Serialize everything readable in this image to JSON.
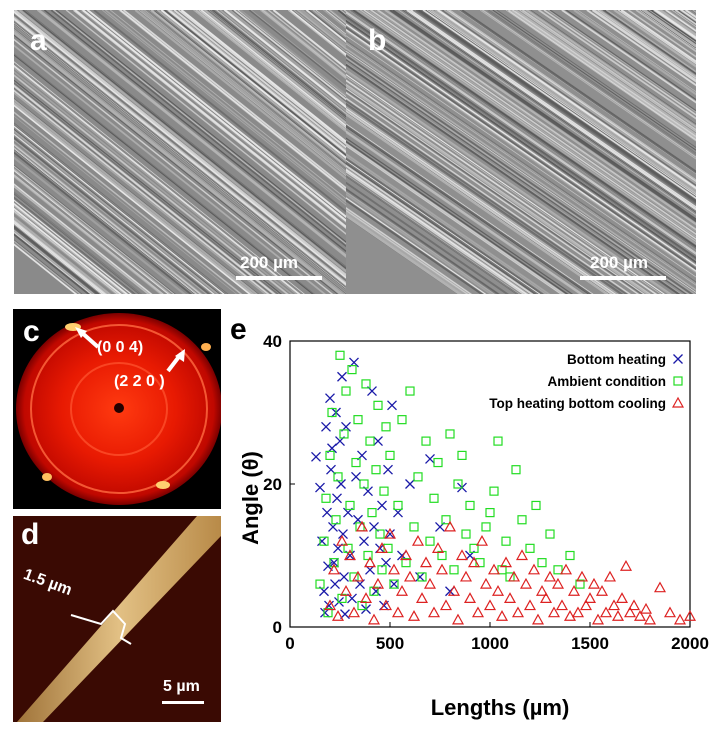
{
  "panels": {
    "a": {
      "label": "a",
      "scale_bar": "200 µm"
    },
    "b": {
      "label": "b",
      "scale_bar": "200 µm"
    },
    "c": {
      "label": "c",
      "annotations": [
        "(0 0 4)",
        "(2 2 0 )"
      ]
    },
    "d": {
      "label": "d",
      "width_annotation": "1.5 µm",
      "scale_bar": "5 µm"
    },
    "e": {
      "label": "e"
    }
  },
  "chart_data": {
    "type": "scatter",
    "xlabel": "Lengths (µm)",
    "ylabel": "Angle (θ)",
    "xlim": [
      0,
      2000
    ],
    "ylim": [
      0,
      40
    ],
    "xticks": [
      0,
      500,
      1000,
      1500,
      2000
    ],
    "yticks": [
      0,
      20,
      40
    ],
    "legend_position": "top-right",
    "series": [
      {
        "name": "Bottom heating",
        "marker": "x",
        "color": "#1a1aa8",
        "points": [
          [
            130,
            23.8
          ],
          [
            150,
            19.5
          ],
          [
            160,
            12
          ],
          [
            170,
            5
          ],
          [
            175,
            2
          ],
          [
            180,
            28
          ],
          [
            185,
            16
          ],
          [
            190,
            8.5
          ],
          [
            195,
            3
          ],
          [
            200,
            32
          ],
          [
            205,
            22
          ],
          [
            210,
            25
          ],
          [
            215,
            14
          ],
          [
            220,
            9
          ],
          [
            225,
            6
          ],
          [
            230,
            30
          ],
          [
            235,
            18
          ],
          [
            240,
            11
          ],
          [
            245,
            3.5
          ],
          [
            250,
            26
          ],
          [
            255,
            20
          ],
          [
            260,
            35
          ],
          [
            265,
            13
          ],
          [
            270,
            7
          ],
          [
            275,
            1.8
          ],
          [
            280,
            28
          ],
          [
            290,
            16
          ],
          [
            300,
            10
          ],
          [
            310,
            4
          ],
          [
            320,
            37
          ],
          [
            330,
            21
          ],
          [
            340,
            15
          ],
          [
            350,
            6
          ],
          [
            360,
            24
          ],
          [
            370,
            12
          ],
          [
            380,
            2.5
          ],
          [
            390,
            19
          ],
          [
            400,
            8
          ],
          [
            410,
            33
          ],
          [
            420,
            14
          ],
          [
            430,
            5
          ],
          [
            440,
            26
          ],
          [
            450,
            11
          ],
          [
            460,
            17
          ],
          [
            470,
            3
          ],
          [
            480,
            9
          ],
          [
            490,
            22
          ],
          [
            500,
            13
          ],
          [
            510,
            31
          ],
          [
            520,
            6
          ],
          [
            540,
            16
          ],
          [
            560,
            10
          ],
          [
            600,
            20
          ],
          [
            650,
            7
          ],
          [
            700,
            23.5
          ],
          [
            750,
            14
          ],
          [
            800,
            5
          ],
          [
            860,
            19.5
          ],
          [
            900,
            10
          ]
        ]
      },
      {
        "name": "Ambient condition",
        "marker": "square",
        "color": "#22dd22",
        "points": [
          [
            150,
            6
          ],
          [
            170,
            12
          ],
          [
            180,
            18
          ],
          [
            190,
            2
          ],
          [
            200,
            24
          ],
          [
            210,
            30
          ],
          [
            220,
            9
          ],
          [
            230,
            15
          ],
          [
            240,
            21
          ],
          [
            250,
            38
          ],
          [
            260,
            4
          ],
          [
            270,
            27
          ],
          [
            280,
            33
          ],
          [
            290,
            11
          ],
          [
            300,
            17
          ],
          [
            310,
            36
          ],
          [
            320,
            7
          ],
          [
            330,
            23
          ],
          [
            340,
            29
          ],
          [
            350,
            14
          ],
          [
            360,
            3
          ],
          [
            370,
            20
          ],
          [
            380,
            34
          ],
          [
            390,
            10
          ],
          [
            400,
            26
          ],
          [
            410,
            16
          ],
          [
            420,
            5
          ],
          [
            430,
            22
          ],
          [
            440,
            31
          ],
          [
            450,
            13
          ],
          [
            460,
            8
          ],
          [
            470,
            19
          ],
          [
            480,
            28
          ],
          [
            490,
            11
          ],
          [
            500,
            24
          ],
          [
            520,
            6
          ],
          [
            540,
            17
          ],
          [
            560,
            29
          ],
          [
            580,
            9
          ],
          [
            600,
            33
          ],
          [
            620,
            14
          ],
          [
            640,
            21
          ],
          [
            660,
            7
          ],
          [
            680,
            26
          ],
          [
            700,
            12
          ],
          [
            720,
            18
          ],
          [
            740,
            23
          ],
          [
            760,
            10
          ],
          [
            780,
            15
          ],
          [
            800,
            27
          ],
          [
            820,
            8
          ],
          [
            840,
            20
          ],
          [
            860,
            24
          ],
          [
            880,
            13
          ],
          [
            900,
            17
          ],
          [
            920,
            11
          ],
          [
            950,
            9
          ],
          [
            980,
            14
          ],
          [
            1000,
            16
          ],
          [
            1020,
            19
          ],
          [
            1040,
            26
          ],
          [
            1060,
            8
          ],
          [
            1080,
            12
          ],
          [
            1100,
            7
          ],
          [
            1130,
            22
          ],
          [
            1160,
            15
          ],
          [
            1200,
            11
          ],
          [
            1230,
            17
          ],
          [
            1260,
            9
          ],
          [
            1300,
            13
          ],
          [
            1340,
            8
          ],
          [
            1400,
            10
          ],
          [
            1450,
            6
          ]
        ]
      },
      {
        "name": "Top heating bottom cooling",
        "marker": "triangle",
        "color": "#dd2222",
        "points": [
          [
            200,
            3
          ],
          [
            220,
            8
          ],
          [
            240,
            1.5
          ],
          [
            260,
            12
          ],
          [
            280,
            5
          ],
          [
            300,
            10
          ],
          [
            320,
            2
          ],
          [
            340,
            7
          ],
          [
            360,
            14
          ],
          [
            380,
            4
          ],
          [
            400,
            9
          ],
          [
            420,
            1
          ],
          [
            440,
            6
          ],
          [
            460,
            11
          ],
          [
            480,
            3
          ],
          [
            500,
            13
          ],
          [
            520,
            8
          ],
          [
            540,
            2
          ],
          [
            560,
            5
          ],
          [
            580,
            10
          ],
          [
            600,
            7
          ],
          [
            620,
            1.5
          ],
          [
            640,
            12
          ],
          [
            660,
            4
          ],
          [
            680,
            9
          ],
          [
            700,
            6
          ],
          [
            720,
            2
          ],
          [
            740,
            11
          ],
          [
            760,
            8
          ],
          [
            780,
            3
          ],
          [
            800,
            14
          ],
          [
            820,
            5
          ],
          [
            840,
            1
          ],
          [
            860,
            10
          ],
          [
            880,
            7
          ],
          [
            900,
            4
          ],
          [
            920,
            9
          ],
          [
            940,
            2
          ],
          [
            960,
            12
          ],
          [
            980,
            6
          ],
          [
            1000,
            3
          ],
          [
            1020,
            8
          ],
          [
            1040,
            5
          ],
          [
            1060,
            1.5
          ],
          [
            1080,
            9
          ],
          [
            1100,
            4
          ],
          [
            1120,
            7
          ],
          [
            1140,
            2
          ],
          [
            1160,
            10
          ],
          [
            1180,
            6
          ],
          [
            1200,
            3
          ],
          [
            1220,
            8
          ],
          [
            1240,
            1
          ],
          [
            1260,
            5
          ],
          [
            1280,
            4
          ],
          [
            1300,
            7
          ],
          [
            1320,
            2
          ],
          [
            1340,
            6
          ],
          [
            1360,
            3
          ],
          [
            1380,
            8
          ],
          [
            1400,
            1.5
          ],
          [
            1420,
            5
          ],
          [
            1440,
            2
          ],
          [
            1460,
            7
          ],
          [
            1480,
            3
          ],
          [
            1500,
            4
          ],
          [
            1520,
            6
          ],
          [
            1540,
            1
          ],
          [
            1560,
            5
          ],
          [
            1580,
            2
          ],
          [
            1600,
            7
          ],
          [
            1620,
            3
          ],
          [
            1640,
            1.5
          ],
          [
            1660,
            4
          ],
          [
            1680,
            8.5
          ],
          [
            1700,
            2
          ],
          [
            1720,
            3
          ],
          [
            1750,
            1.5
          ],
          [
            1780,
            2.5
          ],
          [
            1800,
            1
          ],
          [
            1850,
            5.5
          ],
          [
            1900,
            2
          ],
          [
            1950,
            1
          ],
          [
            2000,
            1.5
          ]
        ]
      }
    ]
  }
}
